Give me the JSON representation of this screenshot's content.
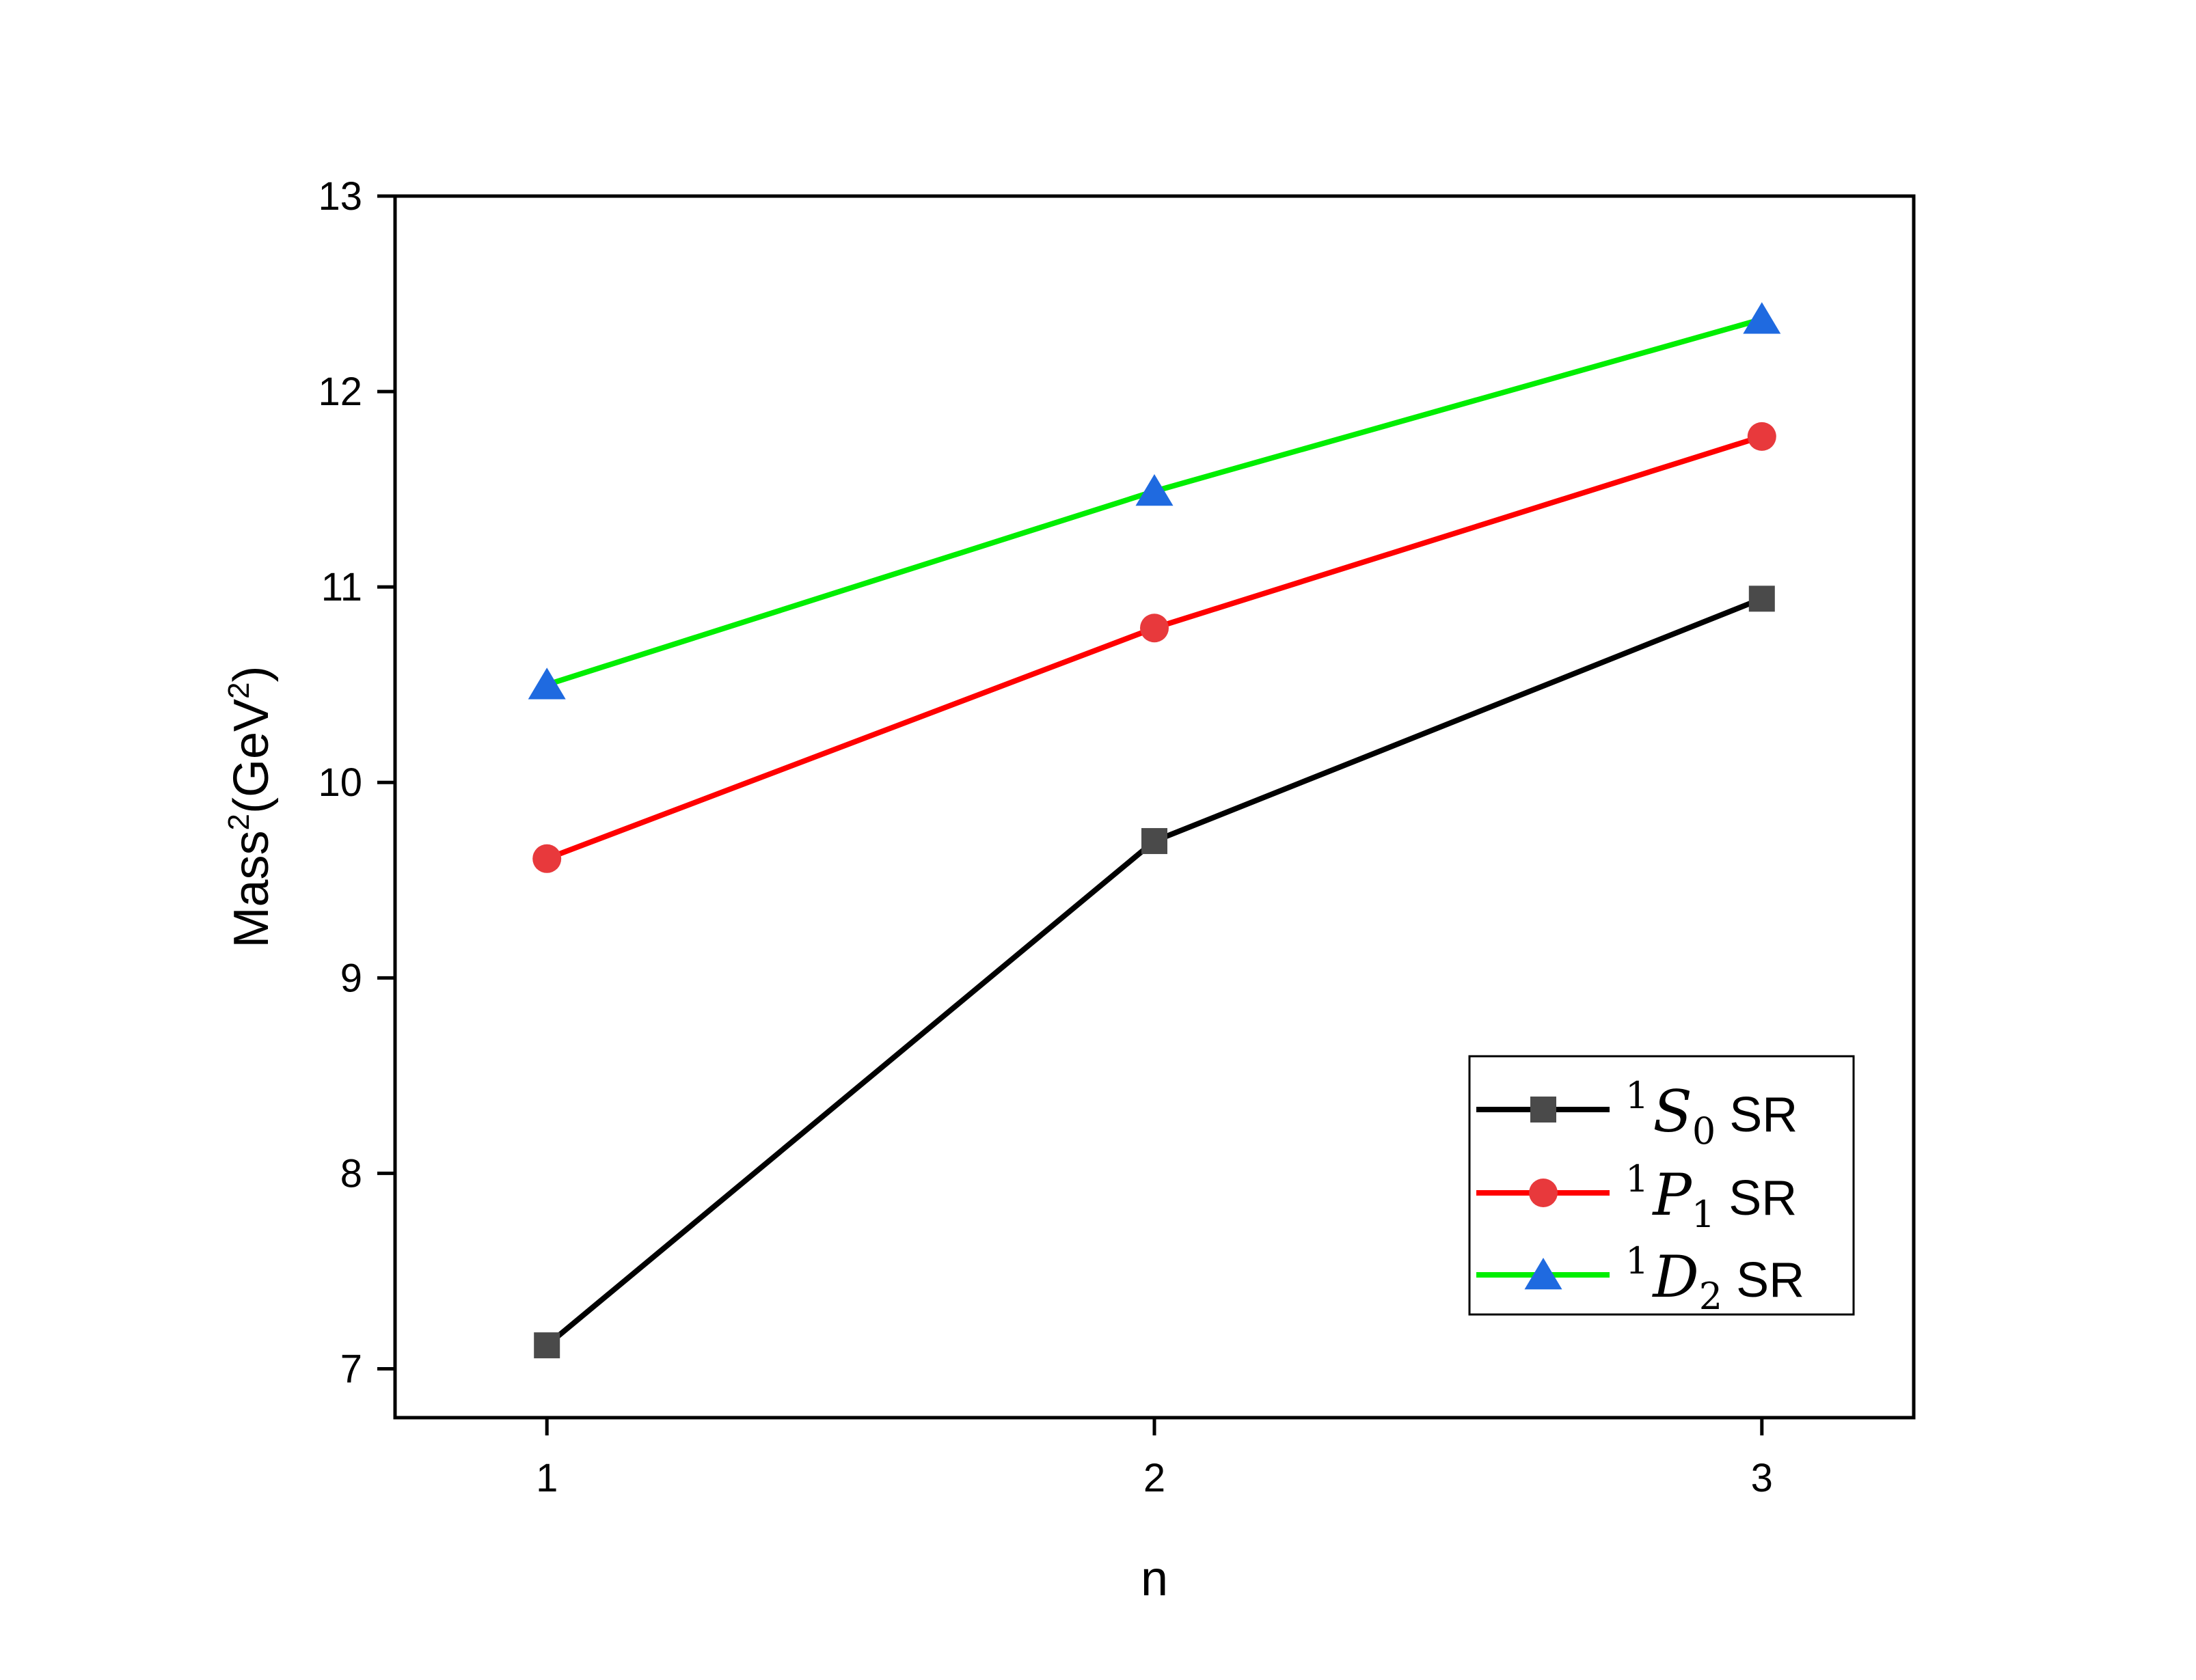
{
  "chart_data": {
    "type": "line",
    "x": [
      1,
      2,
      3
    ],
    "xlim": [
      0.75,
      3.25
    ],
    "ylim": [
      6.75,
      13
    ],
    "xticks": [
      "1",
      "2",
      "3"
    ],
    "yticks": [
      "7",
      "8",
      "9",
      "10",
      "11",
      "12",
      "13"
    ],
    "xlabel": "n",
    "ylabel": {
      "base": "Mass",
      "sup": "2",
      "unit_open": "(GeV",
      "unit_sup": "2",
      "unit_close": ")"
    },
    "grid": false,
    "legend_position": "bottom-right",
    "series": [
      {
        "sup": "1",
        "symbol": "S",
        "sub": "0",
        "suffix": " SR",
        "line_color": "#000000",
        "marker_color": "#4a4a4a",
        "marker": "square",
        "values": [
          7.12,
          9.7,
          10.94
        ]
      },
      {
        "sup": "1",
        "symbol": "P",
        "sub": "1",
        "suffix": " SR",
        "line_color": "#ff0000",
        "marker_color": "#e8393c",
        "marker": "circle",
        "values": [
          9.61,
          10.79,
          11.77
        ]
      },
      {
        "sup": "1",
        "symbol": "D",
        "sub": "2",
        "suffix": " SR",
        "line_color": "#00ee00",
        "marker_color": "#1f6ae0",
        "marker": "triangle",
        "values": [
          10.5,
          11.49,
          12.37
        ]
      }
    ]
  }
}
